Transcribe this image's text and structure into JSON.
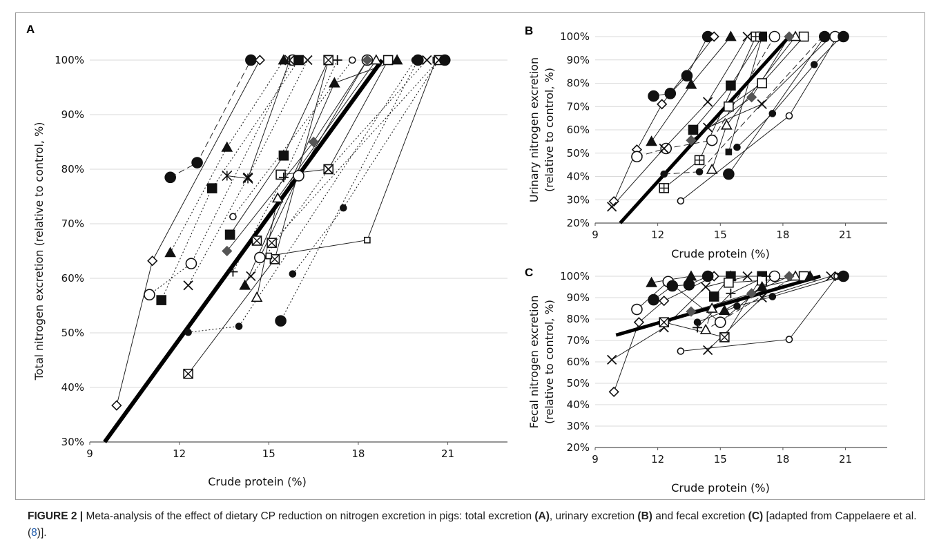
{
  "figure": {
    "caption_head": "FIGURE 2 |",
    "caption_a": " Meta-analysis of the effect of dietary CP reduction on nitrogen excretion in pigs: total excretion ",
    "caption_A": "(A)",
    "caption_b": ", urinary excretion ",
    "caption_B": "(B)",
    "caption_c": " and fecal excretion ",
    "caption_C": "(C)",
    "caption_d": " [adapted from Cappelaere et al. (",
    "caption_ref": "8",
    "caption_e": ")]."
  },
  "chart_data": [
    {
      "panel": "A",
      "type": "scatter",
      "xlabel": "Crude protein (%)",
      "ylabel": "Total nitrogen excretion (relative to control, %)",
      "xlim": [
        9,
        23
      ],
      "ylim": [
        30,
        100
      ],
      "xticks": [
        9,
        12,
        15,
        18,
        21
      ],
      "yticks": [
        30,
        40,
        50,
        60,
        70,
        80,
        90,
        100
      ],
      "ytick_format": "%",
      "regression_line": {
        "x": [
          9.5,
          18.8
        ],
        "y": [
          30,
          100
        ]
      },
      "series": [
        {
          "marker": "circle-filled",
          "style": "dashed",
          "x": [
            11.7,
            12.6,
            14.4
          ],
          "y": [
            78.5,
            81.2,
            100
          ]
        },
        {
          "marker": "diamond-open",
          "style": "solid",
          "x": [
            9.9,
            11.1,
            14.7
          ],
          "y": [
            36.7,
            63.2,
            100
          ]
        },
        {
          "marker": "circle-open",
          "style": "dotted",
          "x": [
            11.0,
            12.4,
            15.8
          ],
          "y": [
            57.0,
            62.7,
            100
          ]
        },
        {
          "marker": "square-filled",
          "style": "dotted",
          "x": [
            11.4,
            13.1,
            16.0
          ],
          "y": [
            56.0,
            76.5,
            100
          ]
        },
        {
          "marker": "triangle-filled",
          "style": "dotted",
          "x": [
            11.7,
            13.6,
            15.5
          ],
          "y": [
            64.7,
            84.0,
            100
          ]
        },
        {
          "marker": "x",
          "style": "dotted",
          "x": [
            12.3,
            14.3,
            16.3
          ],
          "y": [
            58.7,
            78.5,
            100
          ]
        },
        {
          "marker": "asterisk",
          "style": "solid",
          "x": [
            13.6,
            14.3,
            15.7
          ],
          "y": [
            78.8,
            78.3,
            100
          ]
        },
        {
          "marker": "square-filled",
          "style": "solid",
          "x": [
            13.7,
            15.5,
            17.0
          ],
          "y": [
            68.0,
            82.5,
            100
          ]
        },
        {
          "marker": "square-open",
          "style": "solid",
          "x": [
            15.4,
            17.0,
            19.0
          ],
          "y": [
            79.0,
            80.0,
            100
          ]
        },
        {
          "marker": "triangle-open",
          "style": "solid",
          "x": [
            14.6,
            15.3,
            18.6
          ],
          "y": [
            56.5,
            74.7,
            100
          ]
        },
        {
          "marker": "circle-open",
          "style": "solid",
          "x": [
            14.7,
            16.0,
            18.3
          ],
          "y": [
            63.8,
            78.8,
            100
          ]
        },
        {
          "marker": "square-x",
          "style": "solid",
          "x": [
            12.3,
            15.2,
            17.0
          ],
          "y": [
            42.5,
            63.5,
            100
          ]
        },
        {
          "marker": "diamond-filled",
          "style": "solid",
          "x": [
            13.6,
            16.5,
            18.3
          ],
          "y": [
            65.0,
            85.0,
            100
          ]
        },
        {
          "marker": "triangle-filled",
          "style": "solid",
          "x": [
            14.2,
            17.2,
            19.3
          ],
          "y": [
            58.7,
            95.8,
            100
          ]
        },
        {
          "marker": "circle-filled-small",
          "style": "dotted",
          "x": [
            12.3,
            14.0,
            19.9
          ],
          "y": [
            50.1,
            51.2,
            100
          ]
        },
        {
          "marker": "circle-filled",
          "style": "dotted",
          "x": [
            15.4,
            20.0
          ],
          "y": [
            52.2,
            100
          ]
        },
        {
          "marker": "circle-filled-small",
          "style": "dotted",
          "x": [
            15.8,
            17.5,
            20.7
          ],
          "y": [
            60.8,
            72.9,
            100
          ]
        },
        {
          "marker": "square-open-small",
          "style": "solid",
          "x": [
            15.0,
            18.3,
            20.6
          ],
          "y": [
            64.1,
            67.0,
            100
          ]
        },
        {
          "marker": "x",
          "style": "dotted",
          "x": [
            14.4,
            17.0,
            20.3
          ],
          "y": [
            60.4,
            80.0,
            100
          ]
        },
        {
          "marker": "plus",
          "style": "dotted",
          "x": [
            13.8,
            15.5,
            17.3
          ],
          "y": [
            61.2,
            78.5,
            100
          ]
        },
        {
          "marker": "square-x",
          "style": "dotted",
          "x": [
            14.6,
            15.1,
            20.7
          ],
          "y": [
            66.9,
            66.5,
            100
          ]
        },
        {
          "marker": "circle-filled",
          "style": "solid",
          "x": [
            20.9
          ],
          "y": [
            100
          ]
        },
        {
          "marker": "circle-open-small",
          "style": "dotted",
          "x": [
            13.8,
            17.8
          ],
          "y": [
            71.3,
            100
          ]
        },
        {
          "marker": "x",
          "style": "solid",
          "x": [
            20.7
          ],
          "y": [
            100
          ]
        }
      ]
    },
    {
      "panel": "B",
      "type": "scatter",
      "xlabel": "Crude protein (%)",
      "ylabel": "Urinary nitrogen excretion (relative to control, %)",
      "xlim": [
        9,
        23
      ],
      "ylim": [
        20,
        100
      ],
      "xticks": [
        9,
        12,
        15,
        18,
        21
      ],
      "yticks": [
        20,
        30,
        40,
        50,
        60,
        70,
        80,
        90,
        100
      ],
      "ytick_format": "%",
      "regression_line": {
        "x": [
          10.2,
          18.3
        ],
        "y": [
          20,
          100
        ]
      },
      "series": [
        {
          "marker": "circle-filled",
          "style": "solid",
          "x": [
            11.8,
            12.6,
            13.4,
            14.4
          ],
          "y": [
            74.5,
            75.6,
            83.2,
            100
          ]
        },
        {
          "marker": "diamond-open",
          "style": "solid",
          "x": [
            9.9,
            11.0,
            12.2,
            14.7
          ],
          "y": [
            29.3,
            51.5,
            71.0,
            100
          ]
        },
        {
          "marker": "circle-open",
          "style": "dashed",
          "x": [
            11.0,
            12.4,
            14.6,
            17.6
          ],
          "y": [
            48.5,
            52.0,
            55.5,
            100
          ]
        },
        {
          "marker": "triangle-filled",
          "style": "solid",
          "x": [
            11.7,
            13.6,
            15.5
          ],
          "y": [
            55.0,
            79.5,
            100
          ]
        },
        {
          "marker": "x",
          "style": "solid",
          "x": [
            9.8,
            12.3,
            14.4,
            16.3
          ],
          "y": [
            27.0,
            52.0,
            72.0,
            100
          ]
        },
        {
          "marker": "square-filled",
          "style": "solid",
          "x": [
            13.7,
            15.5,
            17.0
          ],
          "y": [
            60.0,
            79.0,
            100
          ]
        },
        {
          "marker": "square-open",
          "style": "solid",
          "x": [
            15.4,
            17.0,
            19.0
          ],
          "y": [
            70.0,
            80.0,
            100
          ]
        },
        {
          "marker": "triangle-open",
          "style": "solid",
          "x": [
            14.6,
            15.3,
            18.6
          ],
          "y": [
            43.0,
            62.0,
            100
          ]
        },
        {
          "marker": "diamond-filled",
          "style": "solid",
          "x": [
            13.6,
            16.5,
            18.3
          ],
          "y": [
            55.5,
            74.0,
            100
          ]
        },
        {
          "marker": "circle-filled-small",
          "style": "dashed",
          "x": [
            12.3,
            14.0,
            19.9
          ],
          "y": [
            41.0,
            42.0,
            100
          ]
        },
        {
          "marker": "circle-filled",
          "style": "solid",
          "x": [
            15.4,
            20.0
          ],
          "y": [
            41.0,
            100
          ]
        },
        {
          "marker": "circle-filled-small",
          "style": "solid",
          "x": [
            15.8,
            17.5,
            19.5,
            20.8
          ],
          "y": [
            52.5,
            67.0,
            88.0,
            100
          ]
        },
        {
          "marker": "circle-open-small",
          "style": "solid",
          "x": [
            13.1,
            18.3,
            20.6
          ],
          "y": [
            29.5,
            66.0,
            100
          ]
        },
        {
          "marker": "square-plus",
          "style": "solid",
          "x": [
            12.3,
            14.0,
            16.7
          ],
          "y": [
            35.0,
            47.0,
            100
          ]
        },
        {
          "marker": "x",
          "style": "solid",
          "x": [
            14.4,
            17.0,
            20.3
          ],
          "y": [
            61.0,
            71.0,
            100
          ]
        },
        {
          "marker": "square-filled-small",
          "style": "solid",
          "x": [
            15.4,
            17.0
          ],
          "y": [
            50.5,
            100
          ]
        },
        {
          "marker": "circle-open",
          "style": "solid",
          "x": [
            20.5
          ],
          "y": [
            100
          ]
        },
        {
          "marker": "circle-filled",
          "style": "solid",
          "x": [
            20.9
          ],
          "y": [
            100
          ]
        }
      ]
    },
    {
      "panel": "C",
      "type": "scatter",
      "xlabel": "Crude protein (%)",
      "ylabel": "Fecal nitrogen excretion (relative to control, %)",
      "xlim": [
        9,
        23
      ],
      "ylim": [
        20,
        100
      ],
      "xticks": [
        9,
        12,
        15,
        18,
        21
      ],
      "yticks": [
        20,
        30,
        40,
        50,
        60,
        70,
        80,
        90,
        100
      ],
      "ytick_format": "%",
      "regression_line": {
        "x": [
          10.0,
          19.8
        ],
        "y": [
          72.5,
          100
        ]
      },
      "series": [
        {
          "marker": "diamond-open",
          "style": "solid",
          "x": [
            9.9,
            11.1,
            12.3,
            14.7
          ],
          "y": [
            46.0,
            78.5,
            88.5,
            100
          ]
        },
        {
          "marker": "x",
          "style": "solid",
          "x": [
            9.8,
            12.3,
            14.3,
            16.3
          ],
          "y": [
            61.0,
            76.0,
            95.0,
            100
          ]
        },
        {
          "marker": "circle-open",
          "style": "solid",
          "x": [
            11.0,
            12.5,
            15.0,
            17.6
          ],
          "y": [
            84.5,
            97.5,
            78.5,
            100
          ]
        },
        {
          "marker": "triangle-filled",
          "style": "solid",
          "x": [
            11.7,
            13.6,
            15.5
          ],
          "y": [
            97.0,
            100,
            100
          ]
        },
        {
          "marker": "circle-filled",
          "style": "solid",
          "x": [
            11.8,
            12.7,
            13.5,
            14.4
          ],
          "y": [
            89.0,
            95.5,
            96.0,
            100
          ]
        },
        {
          "marker": "square-x",
          "style": "solid",
          "x": [
            12.3,
            15.2,
            17.0
          ],
          "y": [
            78.5,
            71.5,
            100
          ]
        },
        {
          "marker": "triangle-open",
          "style": "dashed",
          "x": [
            14.6,
            14.3,
            18.6
          ],
          "y": [
            85.0,
            75.0,
            100
          ]
        },
        {
          "marker": "circle-open-small",
          "style": "solid",
          "x": [
            13.1,
            18.3,
            20.6
          ],
          "y": [
            65.0,
            70.5,
            100
          ]
        },
        {
          "marker": "x",
          "style": "solid",
          "x": [
            14.4,
            17.0,
            20.3
          ],
          "y": [
            65.5,
            90.0,
            100
          ]
        },
        {
          "marker": "diamond-filled",
          "style": "solid",
          "x": [
            13.6,
            16.5,
            18.3
          ],
          "y": [
            83.5,
            92.0,
            100
          ]
        },
        {
          "marker": "square-filled",
          "style": "solid",
          "x": [
            14.7,
            15.5,
            17.0
          ],
          "y": [
            90.5,
            100,
            100
          ]
        },
        {
          "marker": "square-open",
          "style": "solid",
          "x": [
            15.4,
            17.0,
            19.0
          ],
          "y": [
            97.0,
            98.0,
            100
          ]
        },
        {
          "marker": "circle-filled-small",
          "style": "solid",
          "x": [
            13.9,
            15.8,
            17.5,
            20.8
          ],
          "y": [
            78.5,
            86.0,
            90.5,
            100
          ]
        },
        {
          "marker": "plus",
          "style": "solid",
          "x": [
            13.9,
            15.5,
            17.2
          ],
          "y": [
            76.0,
            92.0,
            100
          ]
        },
        {
          "marker": "triangle-filled",
          "style": "solid",
          "x": [
            15.2,
            17.0,
            19.3
          ],
          "y": [
            84.0,
            95.0,
            100
          ]
        },
        {
          "marker": "circle-filled",
          "style": "solid",
          "x": [
            20.9
          ],
          "y": [
            100
          ]
        },
        {
          "marker": "x",
          "style": "solid",
          "x": [
            20.7
          ],
          "y": [
            100
          ]
        }
      ]
    }
  ]
}
